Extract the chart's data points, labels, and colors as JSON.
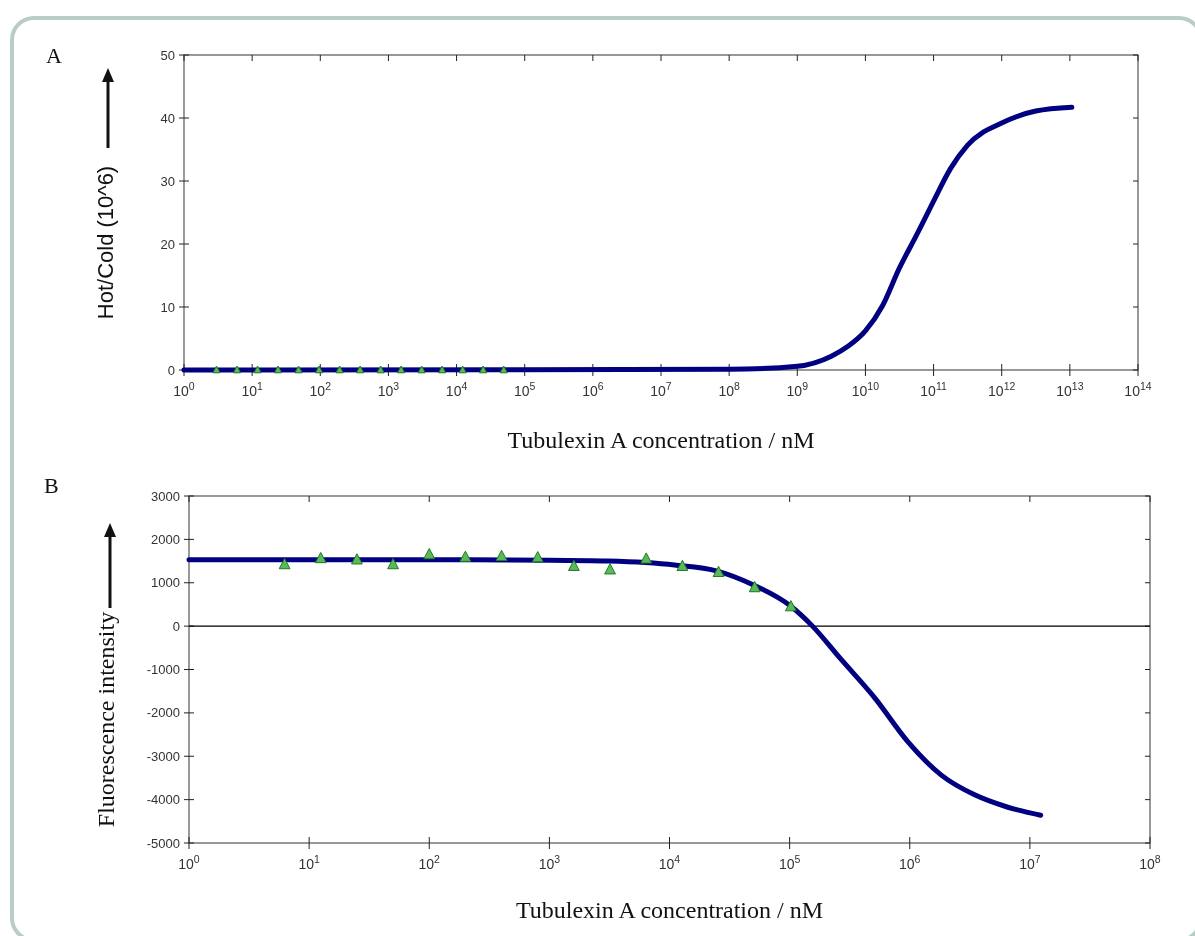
{
  "chart_data": [
    {
      "type": "line",
      "title": "A",
      "xlabel": "Tubulexin A concentration / nM",
      "ylabel": "Hot/Cold (10^6)",
      "log": "x",
      "xlim": [
        1,
        100000000000000
      ],
      "ylim": [
        0,
        50
      ],
      "xticks": [
        {
          "value": 1,
          "label": "10$^{0}$"
        },
        {
          "value": 10,
          "label": "10$^{1}$"
        },
        {
          "value": 100,
          "label": "10$^{2}$"
        },
        {
          "value": 1000,
          "label": "10$^{3}$"
        },
        {
          "value": 10000,
          "label": "10$^{4}$"
        },
        {
          "value": 100000,
          "label": "10$^{5}$"
        },
        {
          "value": 1000000,
          "label": "10$^{6}$"
        },
        {
          "value": 10000000,
          "label": "10$^{7}$"
        },
        {
          "value": 100000000,
          "label": "10$^{8}$"
        },
        {
          "value": 1000000000,
          "label": "10$^{9}$"
        },
        {
          "value": 10000000000,
          "label": "10$^{10}$"
        },
        {
          "value": 100000000000,
          "label": "10$^{11}$"
        },
        {
          "value": 1000000000000,
          "label": "10$^{12}$"
        },
        {
          "value": 10000000000000,
          "label": "10$^{13}$"
        },
        {
          "value": 100000000000000,
          "label": "10$^{14}$"
        }
      ],
      "yticks": [
        0,
        10,
        20,
        30,
        40,
        50
      ],
      "series": [
        {
          "color": "#000080",
          "x": [
            1,
            100000000,
            1000000000,
            3160000000,
            5620000000,
            10000000000,
            17800000000,
            31600000000,
            56200000000,
            100000000000,
            178000000000,
            316000000000,
            1000000000000,
            3160000000000,
            10700000000000
          ],
          "values": [
            0,
            0.1,
            0.6,
            2.2,
            3.8,
            6.2,
            10.2,
            16.2,
            21.4,
            26.8,
            32,
            35.7,
            39.2,
            41.1,
            41.7
          ]
        },
        {
          "type": "scatter",
          "marker": "triangle",
          "color": "#5cb85c",
          "x": [
            3,
            6,
            12,
            24,
            48,
            96,
            192,
            384,
            768,
            1536,
            3072,
            6144,
            12288,
            24576,
            49152
          ],
          "values": [
            0,
            0,
            0,
            0,
            0,
            0,
            0,
            0,
            0,
            0,
            0,
            0,
            0,
            0,
            0
          ]
        }
      ]
    },
    {
      "type": "line",
      "title": "B",
      "xlabel": "Tubulexin A concentration / nM",
      "ylabel": "Fluorescence intensity",
      "log": "x",
      "xlim": [
        1,
        100000000
      ],
      "ylim": [
        -5000,
        3000
      ],
      "xticks": [
        {
          "value": 1,
          "label": "10$^{0}$"
        },
        {
          "value": 10,
          "label": "10$^{1}$"
        },
        {
          "value": 100,
          "label": "10$^{2}$"
        },
        {
          "value": 1000,
          "label": "10$^{3}$"
        },
        {
          "value": 10000,
          "label": "10$^{4}$"
        },
        {
          "value": 100000,
          "label": "10$^{5}$"
        },
        {
          "value": 1000000,
          "label": "10$^{6}$"
        },
        {
          "value": 10000000,
          "label": "10$^{7}$"
        },
        {
          "value": 100000000,
          "label": "10$^{8}$"
        }
      ],
      "yticks": [
        -5000,
        -4000,
        -3000,
        -2000,
        -1000,
        0,
        1000,
        2000,
        3000
      ],
      "ref_lines": [
        {
          "axis": "y",
          "value": 0,
          "color": "#000000"
        }
      ],
      "series": [
        {
          "color": "#000080",
          "x": [
            1,
            100,
            1000,
            3100,
            11000,
            25000,
            50000,
            100000,
            155000,
            263000,
            513000,
            955000,
            1820000,
            3470000,
            6460000,
            12300000
          ],
          "values": [
            1530,
            1530,
            1520,
            1500,
            1410,
            1270,
            950,
            480,
            0,
            -740,
            -1660,
            -2650,
            -3430,
            -3890,
            -4170,
            -4360
          ]
        },
        {
          "type": "scatter",
          "marker": "triangle",
          "color": "#5cb85c",
          "x": [
            6.25,
            12.5,
            25,
            50,
            100,
            200,
            400,
            800,
            1600,
            3200,
            6400,
            12800,
            25600,
            51200,
            102400
          ],
          "values": [
            1420,
            1560,
            1530,
            1420,
            1650,
            1590,
            1610,
            1580,
            1380,
            1300,
            1550,
            1380,
            1240,
            890,
            450
          ]
        }
      ]
    }
  ]
}
